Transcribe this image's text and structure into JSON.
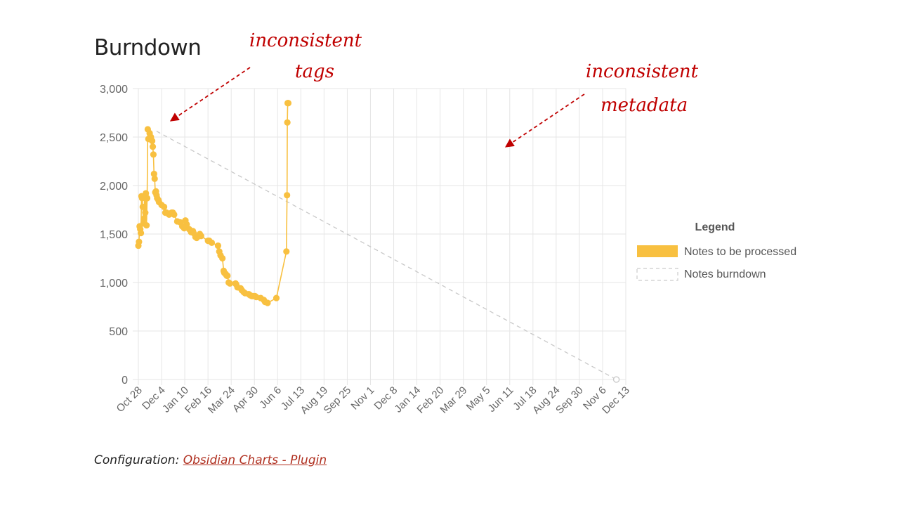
{
  "page": {
    "title": "Burndown"
  },
  "footer": {
    "prefix": "Configuration: ",
    "link_text": "Obsidian Charts - Plugin"
  },
  "annotations": [
    {
      "lines": [
        "inconsistent",
        "tags"
      ]
    },
    {
      "lines": [
        "inconsistent",
        "metadata"
      ]
    }
  ],
  "colors": {
    "series": "#f8c040",
    "grid": "#e6e6e6",
    "axis_text": "#666666",
    "burndown": "#c8c8c8",
    "annotation": "#c00000"
  },
  "chart_data": {
    "type": "line",
    "title": "",
    "ylim": [
      0,
      3000
    ],
    "yticks": [
      0,
      500,
      1000,
      1500,
      2000,
      2500,
      3000
    ],
    "ytick_labels": [
      "0",
      "500",
      "1,000",
      "1,500",
      "2,000",
      "2,500",
      "3,000"
    ],
    "xtick_labels": [
      "Oct 28",
      "Dec 4",
      "Jan 10",
      "Feb 16",
      "Mar 24",
      "Apr 30",
      "Jun 6",
      "Jul 13",
      "Aug 19",
      "Sep 25",
      "Nov 1",
      "Dec 8",
      "Jan 14",
      "Feb 20",
      "Mar 29",
      "May 5",
      "Jun 11",
      "Jul 18",
      "Aug 24",
      "Sep 30",
      "Nov 6",
      "Dec 13"
    ],
    "x_tick_step_days": 37,
    "legend": {
      "title": "Legend",
      "position": "right"
    },
    "series": [
      {
        "name": "Notes to be processed",
        "x_days": [
          0,
          1,
          2,
          3,
          4,
          5,
          6,
          7,
          8,
          9,
          10,
          11,
          12,
          13,
          14,
          15,
          16,
          18,
          20,
          22,
          23,
          24,
          25,
          26,
          27,
          28,
          29,
          30,
          32,
          33,
          37,
          41,
          43,
          45,
          49,
          53,
          55,
          57,
          62,
          67,
          70,
          73,
          75,
          77,
          81,
          84,
          87,
          88,
          91,
          93,
          98,
          100,
          111,
          113,
          117,
          127,
          129,
          131,
          134,
          136,
          137,
          139,
          140,
          141,
          142,
          144,
          146,
          155,
          156,
          158,
          163,
          165,
          168,
          170,
          176,
          178,
          181,
          183,
          186,
          188,
          195,
          200,
          202,
          206,
          220,
          236,
          237,
          237.5,
          238,
          238.5,
          239
        ],
        "values": [
          1380,
          1420,
          1580,
          1550,
          1510,
          1890,
          1870,
          1780,
          1610,
          1660,
          1890,
          1720,
          1920,
          1590,
          1870,
          2580,
          2480,
          2540,
          2500,
          2460,
          2400,
          2320,
          2120,
          2070,
          1930,
          1940,
          1900,
          1870,
          1850,
          1830,
          1800,
          1780,
          1720,
          1720,
          1700,
          1720,
          1720,
          1700,
          1630,
          1620,
          1580,
          1560,
          1640,
          1600,
          1550,
          1520,
          1530,
          1510,
          1470,
          1460,
          1500,
          1480,
          1430,
          1430,
          1410,
          1380,
          1320,
          1280,
          1250,
          1120,
          1100,
          1090,
          1080,
          1070,
          1070,
          1000,
          990,
          990,
          980,
          950,
          940,
          920,
          900,
          890,
          880,
          870,
          860,
          860,
          860,
          850,
          840,
          820,
          800,
          790,
          840,
          1320,
          1900,
          2650,
          2850,
          2850,
          2850
        ]
      },
      {
        "name": "Notes burndown",
        "x_days": [
          29,
          762
        ],
        "values": [
          2560,
          0
        ]
      }
    ]
  }
}
